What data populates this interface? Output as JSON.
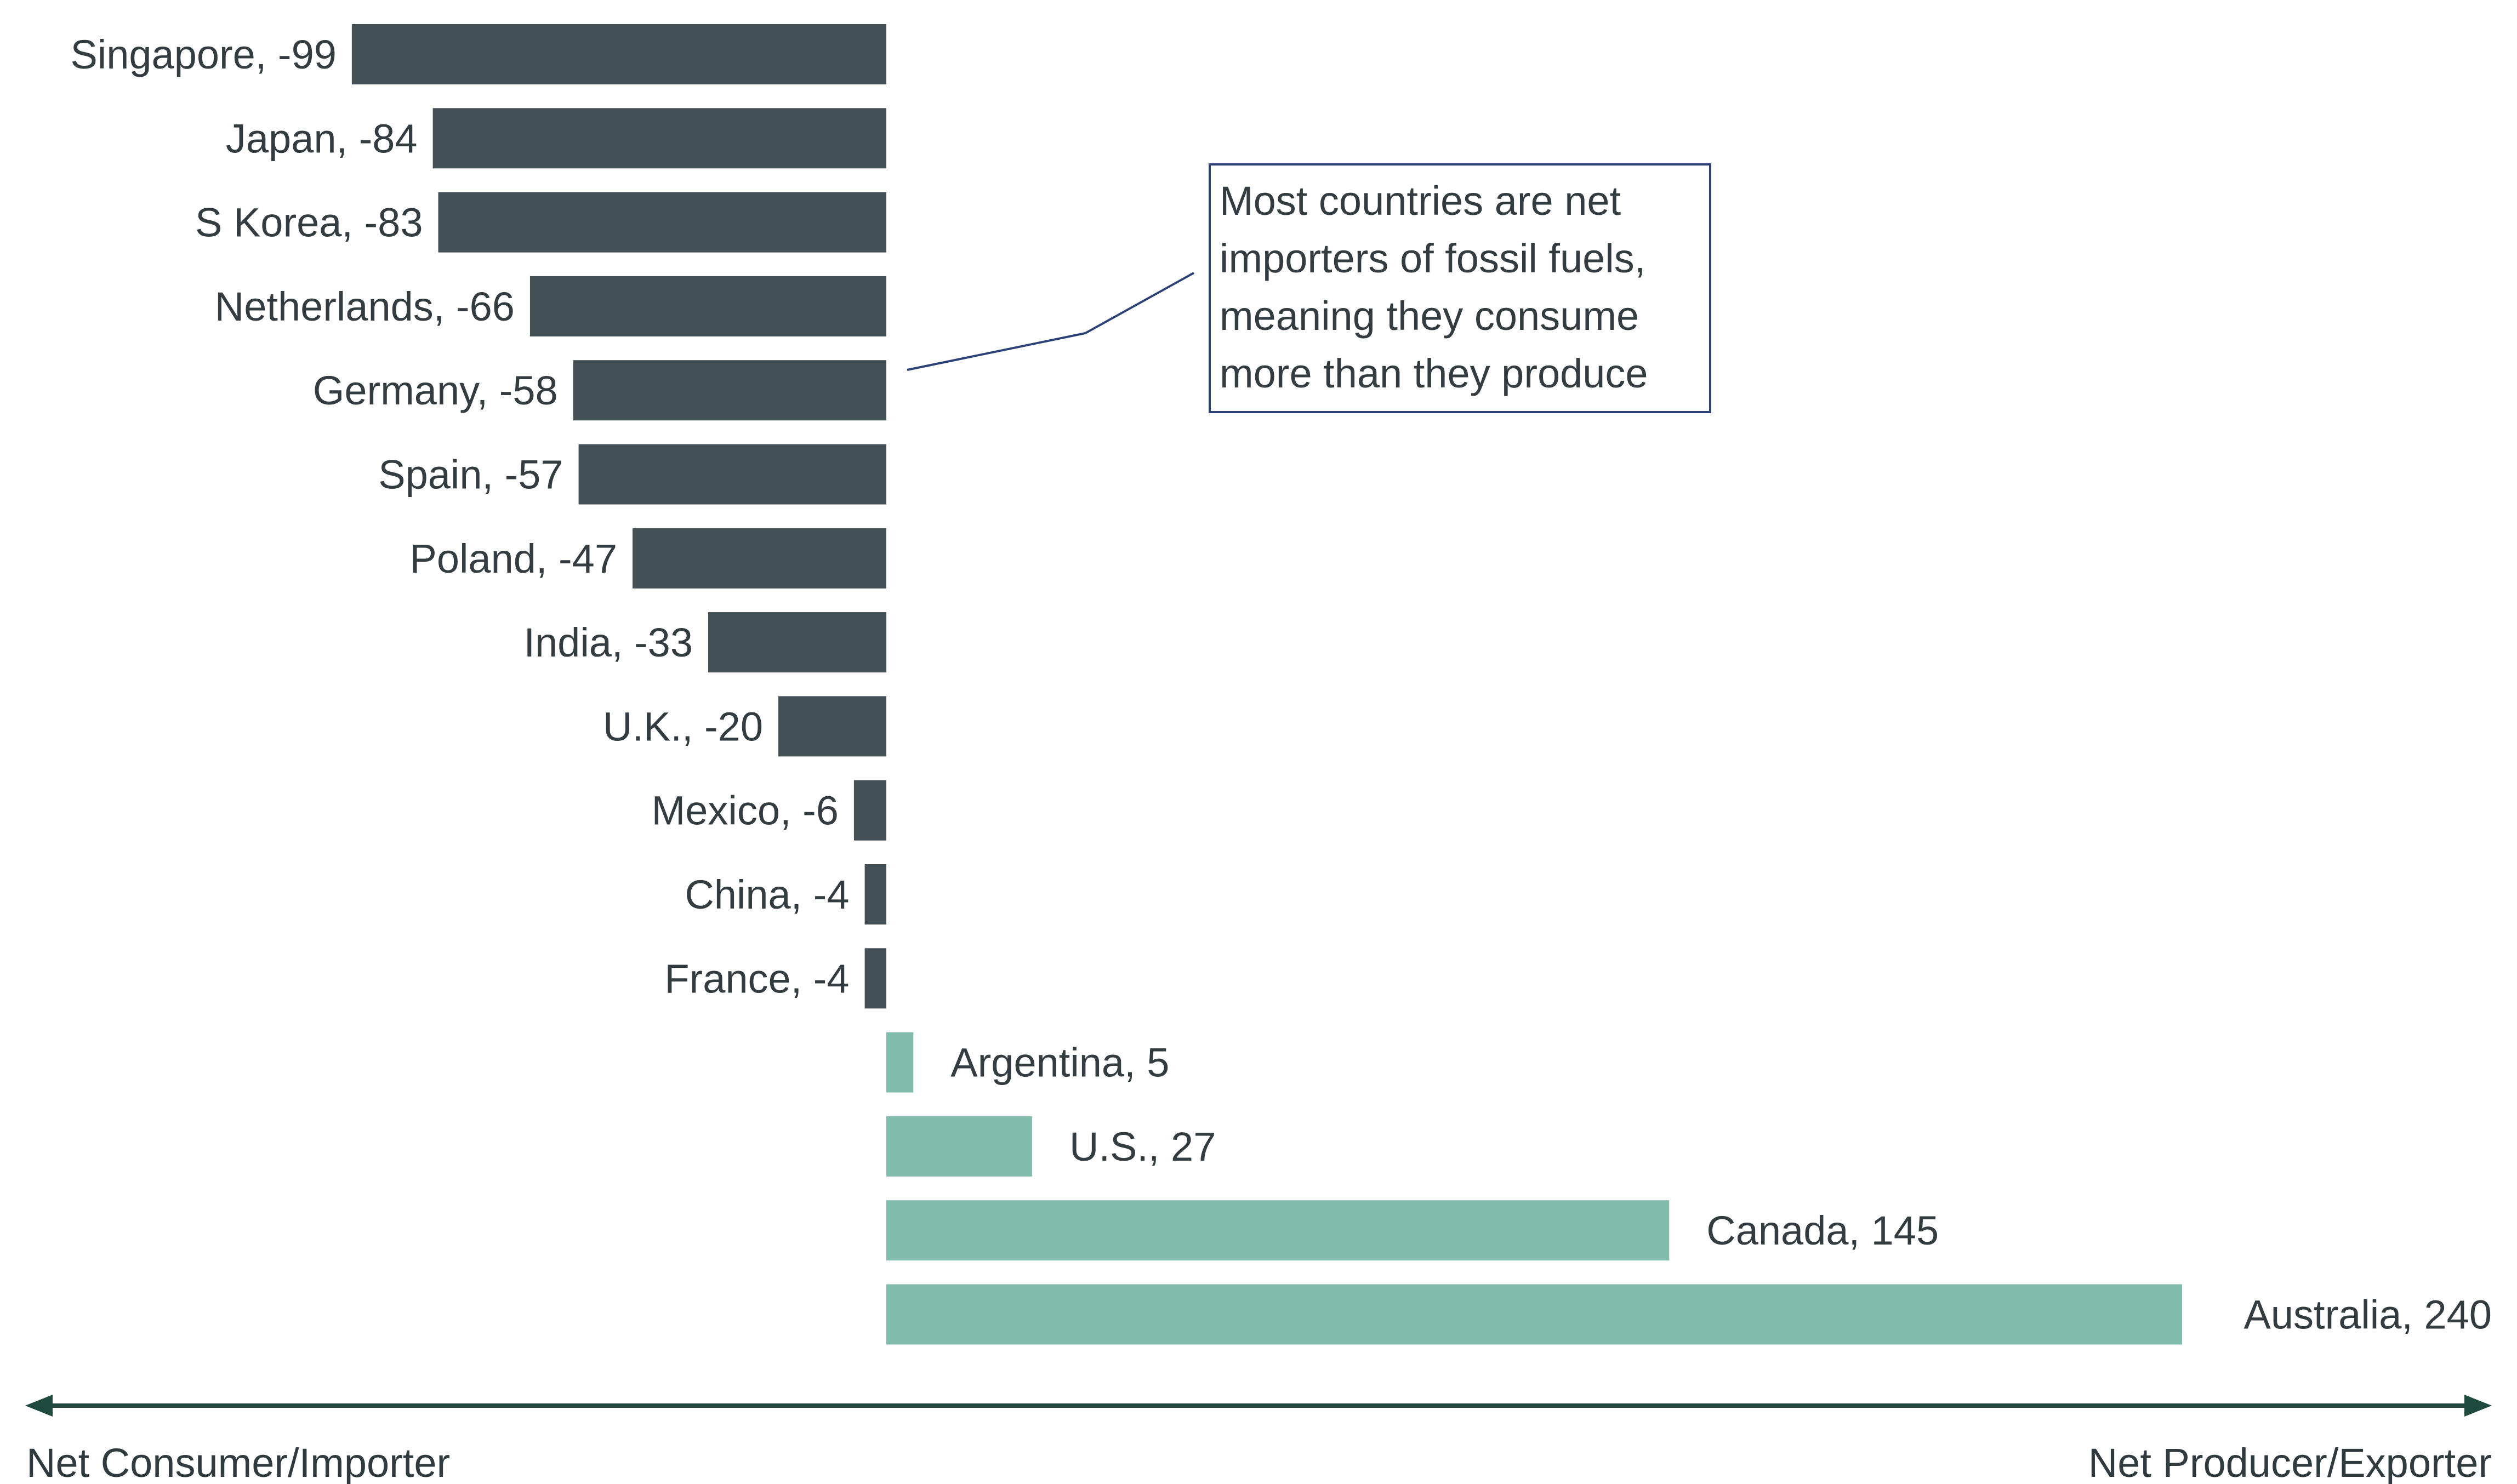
{
  "chart_data": {
    "type": "bar",
    "orientation": "horizontal",
    "categories": [
      "Singapore",
      "Japan",
      "S Korea",
      "Netherlands",
      "Germany",
      "Spain",
      "Poland",
      "India",
      "U.K.",
      "Mexico",
      "China",
      "France",
      "Argentina",
      "U.S.",
      "Canada",
      "Australia"
    ],
    "values": [
      -99,
      -84,
      -83,
      -66,
      -58,
      -57,
      -47,
      -33,
      -20,
      -6,
      -4,
      -4,
      5,
      27,
      145,
      240
    ],
    "data_labels": [
      "Singapore, -99",
      "Japan, -84",
      "S Korea, -83",
      "Netherlands, -66",
      "Germany, -58",
      "Spain, -57",
      "Poland, -47",
      "India, -33",
      "U.K., -20",
      "Mexico, -6",
      "China, -4",
      "France, -4",
      "Argentina, 5",
      "U.S., 27",
      "Canada, 145",
      "Australia, 240"
    ],
    "xlim": [
      -160,
      300
    ],
    "axis": {
      "left_label": "Net Consumer/Importer",
      "right_label": "Net Producer/Exporter"
    },
    "annotation": {
      "lines": [
        "Most countries are net",
        "importers of fossil fuels,",
        "meaning they consume",
        "more than they produce"
      ],
      "points_to": "Germany"
    },
    "colors": {
      "negative": "#435055",
      "positive": "#82bcad",
      "axis": "#1d4a3c",
      "callout_border": "#2c4277"
    },
    "legend": "none",
    "grid": false
  }
}
